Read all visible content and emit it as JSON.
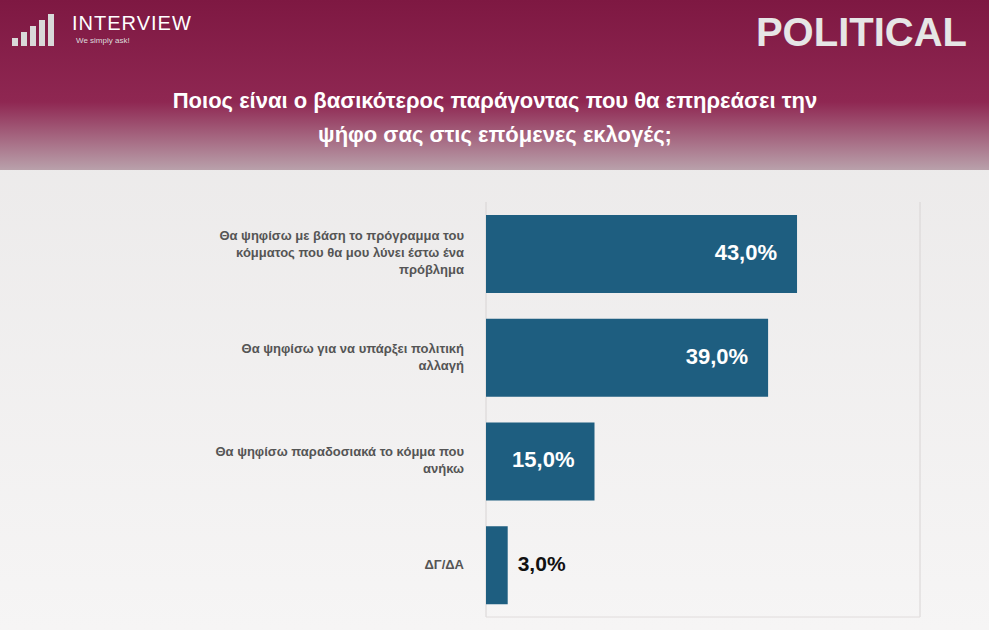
{
  "chart_data": {
    "type": "bar",
    "orientation": "horizontal",
    "title": "Ποιος είναι ο βασικότερος παράγοντας που θα επηρεάσει την ψήφο σας στις επόμενες εκλογές;",
    "annotations": [
      "INTERVIEW",
      "We simply ask!",
      "POLITICAL"
    ],
    "categories": [
      "Θα ψηφίσω με βάση το πρόγραμμα του κόμματος που θα μου λύνει έστω ένα πρόβλημα",
      "Θα ψηφίσω για να υπάρξει πολιτική αλλαγή",
      "Θα ψηφίσω παραδοσιακά το κόμμα που ανήκω",
      "ΔΓ/ΔΑ"
    ],
    "values": [
      43,
      39,
      15,
      3
    ],
    "value_labels": [
      "43,0%",
      "39,0%",
      "15,0%",
      "3,0%"
    ],
    "color": "#1e5e80",
    "xlim": [
      0,
      60
    ],
    "xticks": [
      0,
      10,
      20,
      30,
      40,
      50,
      60
    ],
    "grid": true,
    "data_labels": true,
    "tick_labels": false
  }
}
